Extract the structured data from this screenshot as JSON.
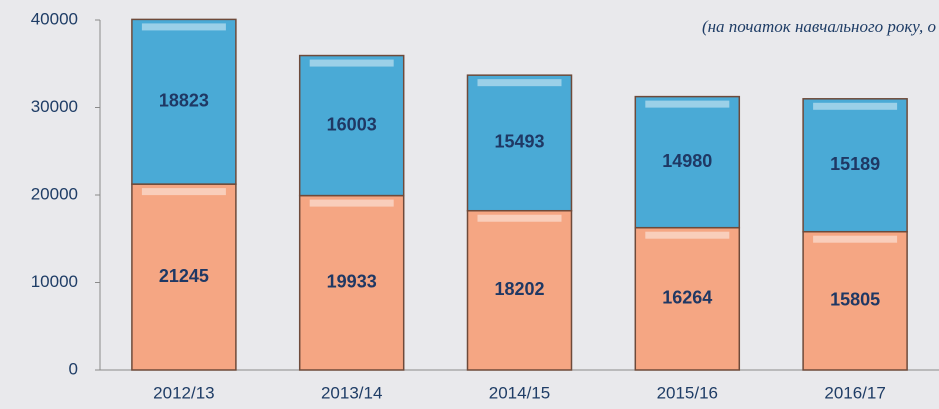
{
  "chart_data": {
    "type": "stacked-bar",
    "subtitle": "(на початок навчального року, о",
    "categories": [
      "2012/13",
      "2013/14",
      "2014/15",
      "2015/16",
      "2016/17"
    ],
    "series": [
      {
        "color": "#f5a683",
        "values": [
          21245,
          19933,
          18202,
          16264,
          15805
        ]
      },
      {
        "color": "#4aaad6",
        "values": [
          18823,
          16003,
          15493,
          14980,
          15189
        ]
      }
    ],
    "ylim": [
      0,
      40000
    ],
    "yticks": [
      0,
      10000,
      20000,
      30000,
      40000
    ]
  }
}
